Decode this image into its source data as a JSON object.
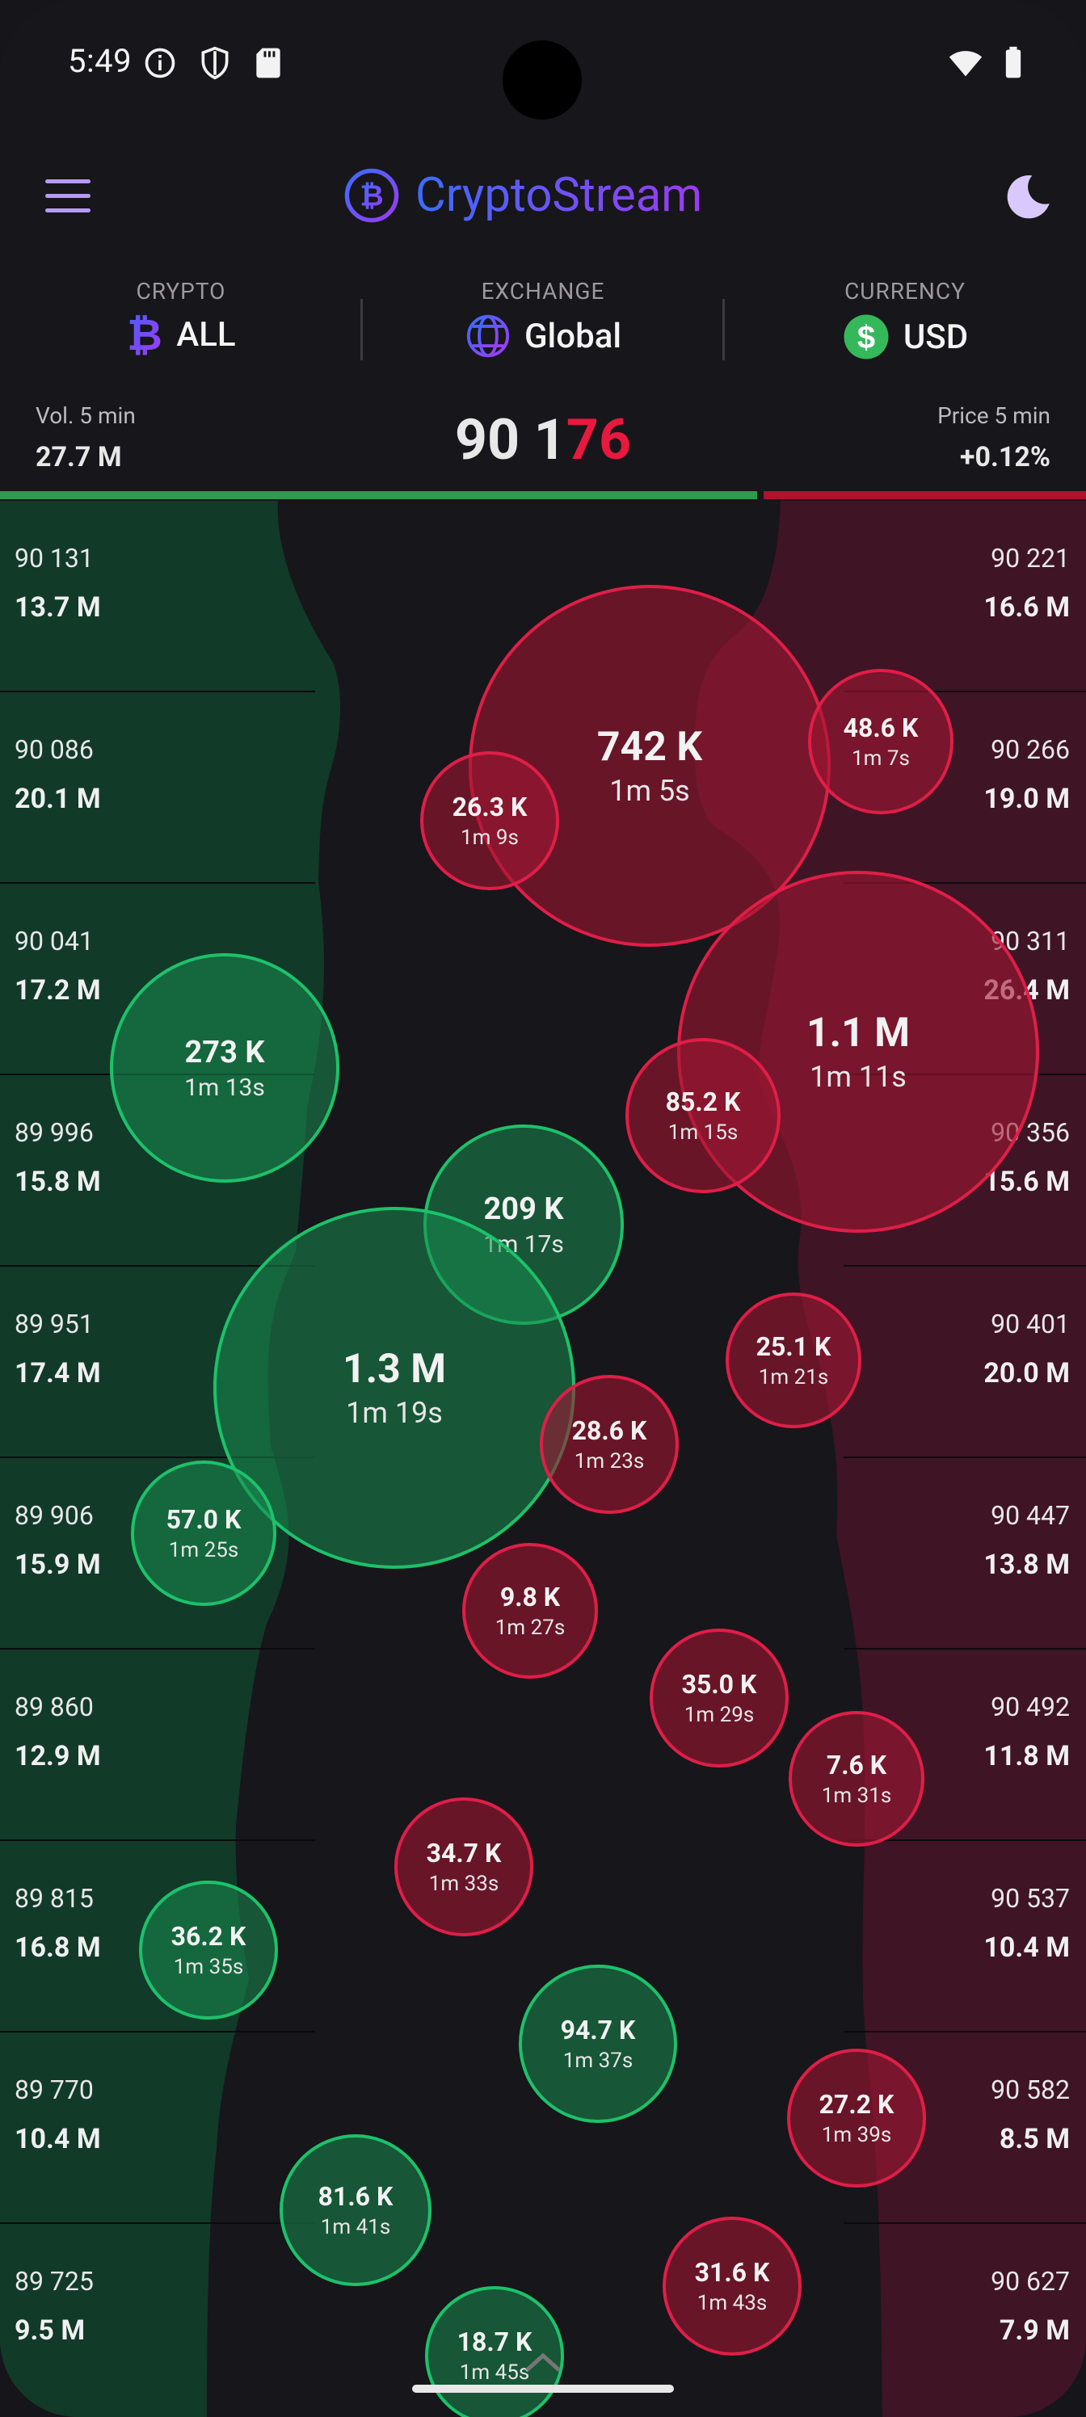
{
  "status_bar": {
    "time": "5:49"
  },
  "app": {
    "title": "CryptoStream",
    "menu_icon": "menu-icon",
    "theme_icon": "moon-icon"
  },
  "selectors": {
    "crypto": {
      "label": "CRYPTO",
      "value": "ALL"
    },
    "exchange": {
      "label": "EXCHANGE",
      "value": "Global"
    },
    "currency": {
      "label": "CURRENCY",
      "value": "USD"
    }
  },
  "stats": {
    "volume_label": "Vol. 5 min",
    "volume_value": "27.7 M",
    "price_prefix": "90 1",
    "price_highlight": "76",
    "change_label": "Price 5 min",
    "change_value": "+0.12%",
    "buy_share": 0.7
  },
  "bids": [
    {
      "price": "90 131",
      "volume": "13.7 M"
    },
    {
      "price": "90 086",
      "volume": "20.1 M"
    },
    {
      "price": "90 041",
      "volume": "17.2 M"
    },
    {
      "price": "89 996",
      "volume": "15.8 M"
    },
    {
      "price": "89 951",
      "volume": "17.4 M"
    },
    {
      "price": "89 906",
      "volume": "15.9 M"
    },
    {
      "price": "89 860",
      "volume": "12.9 M"
    },
    {
      "price": "89 815",
      "volume": "16.8 M"
    },
    {
      "price": "89 770",
      "volume": "10.4 M"
    },
    {
      "price": "89 725",
      "volume": "9.5 M"
    }
  ],
  "asks": [
    {
      "price": "90 221",
      "volume": "16.6 M"
    },
    {
      "price": "90 266",
      "volume": "19.0 M"
    },
    {
      "price": "90 311",
      "volume": "26.4 M"
    },
    {
      "price": "90 356",
      "volume": "15.6 M"
    },
    {
      "price": "90 401",
      "volume": "20.0 M"
    },
    {
      "price": "90 447",
      "volume": "13.8 M"
    },
    {
      "price": "90 492",
      "volume": "11.8 M"
    },
    {
      "price": "90 537",
      "volume": "10.4 M"
    },
    {
      "price": "90 582",
      "volume": "8.5 M"
    },
    {
      "price": "90 627",
      "volume": "7.9 M"
    }
  ],
  "trades": [
    {
      "amount": "742 K",
      "age": "1m 5s",
      "side": "sell"
    },
    {
      "amount": "48.6 K",
      "age": "1m 7s",
      "side": "sell"
    },
    {
      "amount": "26.3 K",
      "age": "1m 9s",
      "side": "sell"
    },
    {
      "amount": "1.1 M",
      "age": "1m 11s",
      "side": "sell"
    },
    {
      "amount": "273 K",
      "age": "1m 13s",
      "side": "buy"
    },
    {
      "amount": "85.2 K",
      "age": "1m 15s",
      "side": "sell"
    },
    {
      "amount": "209 K",
      "age": "1m 17s",
      "side": "buy"
    },
    {
      "amount": "1.3 M",
      "age": "1m 19s",
      "side": "buy"
    },
    {
      "amount": "25.1 K",
      "age": "1m 21s",
      "side": "sell"
    },
    {
      "amount": "28.6 K",
      "age": "1m 23s",
      "side": "sell"
    },
    {
      "amount": "57.0 K",
      "age": "1m 25s",
      "side": "buy"
    },
    {
      "amount": "9.8 K",
      "age": "1m 27s",
      "side": "sell"
    },
    {
      "amount": "35.0 K",
      "age": "1m 29s",
      "side": "sell"
    },
    {
      "amount": "7.6 K",
      "age": "1m 31s",
      "side": "sell"
    },
    {
      "amount": "34.7 K",
      "age": "1m 33s",
      "side": "sell"
    },
    {
      "amount": "36.2 K",
      "age": "1m 35s",
      "side": "buy"
    },
    {
      "amount": "94.7 K",
      "age": "1m 37s",
      "side": "buy"
    },
    {
      "amount": "27.2 K",
      "age": "1m 39s",
      "side": "sell"
    },
    {
      "amount": "81.6 K",
      "age": "1m 41s",
      "side": "buy"
    },
    {
      "amount": "31.6 K",
      "age": "1m 43s",
      "side": "sell"
    },
    {
      "amount": "18.7 K",
      "age": "1m 45s",
      "side": "buy"
    }
  ]
}
